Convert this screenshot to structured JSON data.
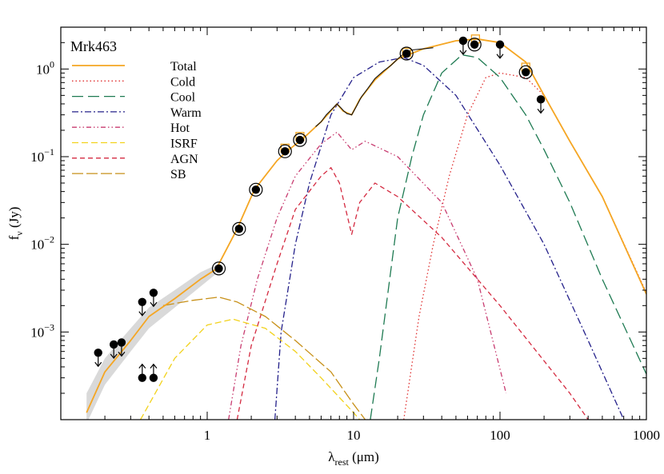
{
  "chart_data": {
    "type": "line",
    "title": "Mrk463",
    "xlabel": "λrest (μm)",
    "ylabel": "fν (Jy)",
    "xscale": "log",
    "yscale": "log",
    "xlim": [
      0.1,
      1000
    ],
    "ylim": [
      0.0001,
      3
    ],
    "xticks": [
      {
        "v": 1,
        "label": "1"
      },
      {
        "v": 10,
        "label": "10"
      },
      {
        "v": 100,
        "label": "100"
      },
      {
        "v": 1000,
        "label": "1000"
      }
    ],
    "yticks": [
      {
        "v": 0.001,
        "base": "10",
        "exp": "−3"
      },
      {
        "v": 0.01,
        "base": "10",
        "exp": "−2"
      },
      {
        "v": 0.1,
        "base": "10",
        "exp": "−1"
      },
      {
        "v": 1,
        "base": "10",
        "exp": "0"
      }
    ],
    "legend_position": "top-left",
    "series": [
      {
        "name": "Total",
        "color": "#f5a623",
        "dash": "solid",
        "points": [
          [
            0.15,
            0.00012
          ],
          [
            0.2,
            0.00035
          ],
          [
            0.3,
            0.0008
          ],
          [
            0.4,
            0.0015
          ],
          [
            0.6,
            0.0024
          ],
          [
            0.9,
            0.004
          ],
          [
            1.15,
            0.0052
          ],
          [
            1.6,
            0.015
          ],
          [
            2.1,
            0.042
          ],
          [
            3.0,
            0.09
          ],
          [
            3.5,
            0.115
          ],
          [
            4.5,
            0.16
          ],
          [
            6,
            0.25
          ],
          [
            7.7,
            0.4
          ],
          [
            8.5,
            0.33
          ],
          [
            9.7,
            0.3
          ],
          [
            11,
            0.45
          ],
          [
            14,
            0.75
          ],
          [
            20,
            1.3
          ],
          [
            30,
            1.7
          ],
          [
            50,
            2.1
          ],
          [
            70,
            2.2
          ],
          [
            100,
            2.0
          ],
          [
            150,
            1.2
          ],
          [
            200,
            0.5
          ],
          [
            300,
            0.15
          ],
          [
            500,
            0.035
          ],
          [
            1000,
            0.0027
          ]
        ]
      },
      {
        "name": "Cold",
        "color": "#e03030",
        "dash": "1.5,3",
        "points": [
          [
            22,
            0.0001
          ],
          [
            28,
            0.0015
          ],
          [
            35,
            0.01
          ],
          [
            45,
            0.06
          ],
          [
            60,
            0.3
          ],
          [
            80,
            0.8
          ],
          [
            100,
            0.9
          ],
          [
            150,
            0.8
          ],
          [
            200,
            0.5
          ],
          [
            300,
            0.15
          ],
          [
            500,
            0.035
          ],
          [
            1000,
            0.0028
          ]
        ]
      },
      {
        "name": "Cool",
        "color": "#1e7a52",
        "dash": "14,6",
        "points": [
          [
            13,
            0.0001
          ],
          [
            15,
            0.0005
          ],
          [
            20,
            0.02
          ],
          [
            25,
            0.1
          ],
          [
            30,
            0.3
          ],
          [
            40,
            0.9
          ],
          [
            55,
            1.45
          ],
          [
            70,
            1.35
          ],
          [
            100,
            0.8
          ],
          [
            150,
            0.3
          ],
          [
            200,
            0.12
          ],
          [
            300,
            0.03
          ],
          [
            500,
            0.004
          ],
          [
            1000,
            0.00033
          ]
        ]
      },
      {
        "name": "Warm",
        "color": "#24208a",
        "dash": "8,3,2,3",
        "points": [
          [
            2.9,
            0.0001
          ],
          [
            3.2,
            0.001
          ],
          [
            4,
            0.01
          ],
          [
            5,
            0.05
          ],
          [
            7,
            0.3
          ],
          [
            10,
            0.8
          ],
          [
            15,
            1.2
          ],
          [
            22,
            1.35
          ],
          [
            30,
            1.1
          ],
          [
            50,
            0.5
          ],
          [
            100,
            0.08
          ],
          [
            200,
            0.01
          ],
          [
            400,
            0.0008
          ],
          [
            700,
            0.0001
          ]
        ]
      },
      {
        "name": "Hot",
        "color": "#c83c70",
        "dash": "6,3,1.5,3,1.5,3",
        "points": [
          [
            1.4,
            0.0001
          ],
          [
            1.7,
            0.0007
          ],
          [
            2.2,
            0.004
          ],
          [
            3,
            0.02
          ],
          [
            4,
            0.06
          ],
          [
            6,
            0.14
          ],
          [
            7.7,
            0.19
          ],
          [
            9.7,
            0.12
          ],
          [
            12,
            0.15
          ],
          [
            20,
            0.1
          ],
          [
            40,
            0.03
          ],
          [
            70,
            0.004
          ],
          [
            110,
            0.0002
          ]
        ]
      },
      {
        "name": "ISRF",
        "color": "#f2d21c",
        "dash": "8,4",
        "points": [
          [
            0.35,
            0.0001
          ],
          [
            0.6,
            0.0005
          ],
          [
            1,
            0.0012
          ],
          [
            1.5,
            0.0014
          ],
          [
            2.5,
            0.0011
          ],
          [
            4,
            0.0006
          ],
          [
            6,
            0.0003
          ],
          [
            10,
            0.00012
          ],
          [
            11,
            0.0001
          ]
        ]
      },
      {
        "name": "AGN",
        "color": "#d42a40",
        "dash": "6,4",
        "points": [
          [
            1.6,
            0.0001
          ],
          [
            2.0,
            0.0007
          ],
          [
            3,
            0.006
          ],
          [
            4,
            0.025
          ],
          [
            6,
            0.06
          ],
          [
            7,
            0.075
          ],
          [
            8,
            0.05
          ],
          [
            9.7,
            0.013
          ],
          [
            11,
            0.03
          ],
          [
            14,
            0.05
          ],
          [
            20,
            0.035
          ],
          [
            40,
            0.012
          ],
          [
            100,
            0.002
          ],
          [
            300,
            0.0002
          ],
          [
            400,
            0.0001
          ]
        ]
      },
      {
        "name": "SB",
        "color": "#c79018",
        "dash": "14,4",
        "points": [
          [
            0.5,
            0.002
          ],
          [
            0.8,
            0.0023
          ],
          [
            1.2,
            0.0025
          ],
          [
            1.6,
            0.0022
          ],
          [
            2.5,
            0.0015
          ],
          [
            4,
            0.0008
          ],
          [
            7,
            0.00035
          ],
          [
            10,
            0.00015
          ],
          [
            12,
            0.0001
          ]
        ]
      }
    ],
    "photometry": [
      {
        "x": 1.2,
        "y": 0.0053,
        "type": "point"
      },
      {
        "x": 1.65,
        "y": 0.015,
        "type": "point"
      },
      {
        "x": 2.15,
        "y": 0.042,
        "type": "point"
      },
      {
        "x": 3.4,
        "y": 0.115,
        "type": "point"
      },
      {
        "x": 4.3,
        "y": 0.155,
        "type": "point"
      },
      {
        "x": 23,
        "y": 1.5,
        "type": "point"
      },
      {
        "x": 67,
        "y": 1.9,
        "type": "point"
      },
      {
        "x": 150,
        "y": 0.92,
        "type": "point"
      },
      {
        "x": 0.18,
        "y": 0.00058,
        "type": "upper_limit"
      },
      {
        "x": 0.23,
        "y": 0.00072,
        "type": "upper_limit"
      },
      {
        "x": 0.26,
        "y": 0.00076,
        "type": "upper_limit"
      },
      {
        "x": 0.36,
        "y": 0.0022,
        "type": "upper_limit"
      },
      {
        "x": 0.43,
        "y": 0.0028,
        "type": "upper_limit"
      },
      {
        "x": 56,
        "y": 2.1,
        "type": "upper_limit"
      },
      {
        "x": 100,
        "y": 1.9,
        "type": "upper_limit"
      },
      {
        "x": 190,
        "y": 0.45,
        "type": "upper_limit"
      },
      {
        "x": 0.36,
        "y": 0.0003,
        "type": "lower_limit"
      },
      {
        "x": 0.43,
        "y": 0.0003,
        "type": "lower_limit"
      }
    ],
    "model_photometry": [
      {
        "x": 3.4,
        "y": 0.125
      },
      {
        "x": 4.3,
        "y": 0.17
      },
      {
        "x": 23,
        "y": 1.55
      },
      {
        "x": 68,
        "y": 2.2
      },
      {
        "x": 150,
        "y": 1.05
      }
    ],
    "observed_spectrum": {
      "color": "#111111",
      "points": [
        [
          5.5,
          0.22
        ],
        [
          6,
          0.25
        ],
        [
          6.5,
          0.3
        ],
        [
          7,
          0.34
        ],
        [
          7.7,
          0.4
        ],
        [
          8.2,
          0.36
        ],
        [
          8.6,
          0.33
        ],
        [
          9.0,
          0.31
        ],
        [
          9.7,
          0.3
        ],
        [
          10.5,
          0.38
        ],
        [
          11.3,
          0.48
        ],
        [
          12.5,
          0.6
        ],
        [
          14,
          0.78
        ],
        [
          16,
          0.95
        ],
        [
          18,
          1.1
        ],
        [
          20,
          1.3
        ],
        [
          22,
          1.5
        ],
        [
          25,
          1.65
        ],
        [
          30,
          1.7
        ],
        [
          35,
          1.75
        ]
      ]
    },
    "uncertainty_band": {
      "color": "#d9d9d9",
      "points": [
        [
          0.15,
          9e-05,
          0.0002
        ],
        [
          0.2,
          0.00025,
          0.0005
        ],
        [
          0.3,
          0.0006,
          0.0011
        ],
        [
          0.4,
          0.0011,
          0.0019
        ],
        [
          0.6,
          0.0019,
          0.003
        ],
        [
          0.9,
          0.0033,
          0.0048
        ],
        [
          1.15,
          0.0046,
          0.0058
        ]
      ]
    }
  }
}
